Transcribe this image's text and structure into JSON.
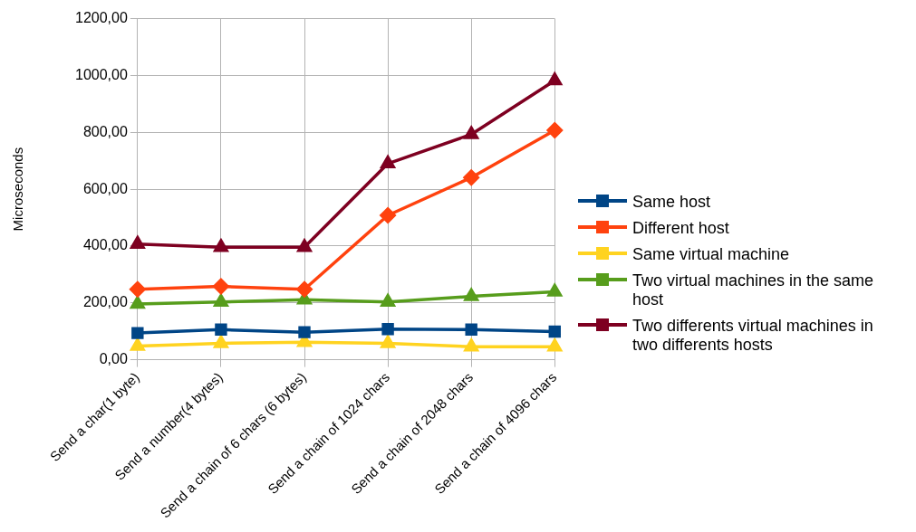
{
  "chart_data": {
    "type": "line",
    "ylabel": "Microseconds",
    "categories": [
      "Send a char(1 byte)",
      "Send a number(4 bytes)",
      "Send a chain of 6 chars (6 bytes)",
      "Send a chain of 1024 chars",
      "Send a chain of 2048 chars",
      "Send a chain of 4096 chars"
    ],
    "series": [
      {
        "name": "Same host",
        "color": "#004586",
        "marker": "square",
        "values": [
          94,
          106,
          97,
          108,
          106,
          99
        ]
      },
      {
        "name": "Different host",
        "color": "#ff420e",
        "marker": "diamond",
        "values": [
          248,
          258,
          248,
          508,
          641,
          807
        ]
      },
      {
        "name": "Same virtual machine",
        "color": "#ffd320",
        "marker": "triangle",
        "values": [
          48,
          58,
          62,
          58,
          46,
          46
        ]
      },
      {
        "name": "Two virtual machines in the same host",
        "color": "#579d1c",
        "marker": "triangle",
        "values": [
          196,
          203,
          211,
          203,
          223,
          239
        ]
      },
      {
        "name": "Two differents virtual machines in two differents hosts",
        "color": "#7e0021",
        "marker": "triangle",
        "values": [
          407,
          396,
          396,
          690,
          793,
          982
        ]
      }
    ],
    "ylim": [
      0,
      1200
    ],
    "yticks": [
      {
        "value": 0,
        "label": "0,00"
      },
      {
        "value": 200,
        "label": "200,00"
      },
      {
        "value": 400,
        "label": "400,00"
      },
      {
        "value": 600,
        "label": "600,00"
      },
      {
        "value": 800,
        "label": "800,00"
      },
      {
        "value": 1000,
        "label": "1000,00"
      },
      {
        "value": 1200,
        "label": "1200,00"
      }
    ],
    "grid": true,
    "legend": "right",
    "line_style": "solid"
  }
}
